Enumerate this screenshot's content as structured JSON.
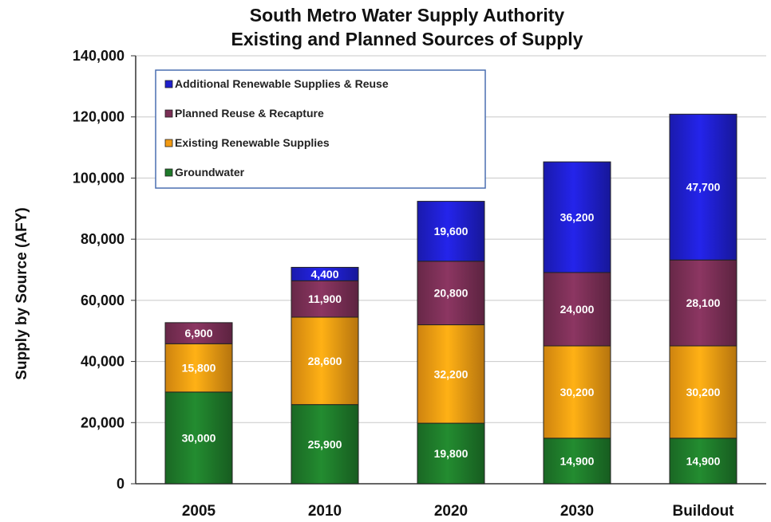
{
  "chart_data": {
    "type": "bar",
    "stacked": true,
    "title": "South Metro Water Supply Authority",
    "subtitle": "Existing and Planned Sources of Supply",
    "xlabel": "",
    "ylabel": "Supply by Source (AFY)",
    "ylim": [
      0,
      140000
    ],
    "yticks": [
      0,
      20000,
      40000,
      60000,
      80000,
      100000,
      120000,
      140000
    ],
    "ytick_labels": [
      "0",
      "20,000",
      "40,000",
      "60,000",
      "80,000",
      "100,000",
      "120,000",
      "140,000"
    ],
    "grid": true,
    "legend_position": "top-left",
    "categories": [
      "2005",
      "2010",
      "2020",
      "2030",
      "Buildout"
    ],
    "series": [
      {
        "name": "Groundwater",
        "color": "#1e7a2a",
        "values": [
          30000,
          25900,
          19800,
          14900,
          14900
        ],
        "labels": [
          "30,000",
          "25,900",
          "19,800",
          "14,900",
          "14,900"
        ]
      },
      {
        "name": "Existing Renewable Supplies",
        "color": "#f29a12",
        "values": [
          15800,
          28600,
          32200,
          30200,
          30200
        ],
        "labels": [
          "15,800",
          "28,600",
          "32,200",
          "30,200",
          "30,200"
        ]
      },
      {
        "name": "Planned Reuse & Recapture",
        "color": "#7a2f55",
        "values": [
          6900,
          11900,
          20800,
          24000,
          28100
        ],
        "labels": [
          "6,900",
          "11,900",
          "20,800",
          "24,000",
          "28,100"
        ]
      },
      {
        "name": "Additional Renewable Supplies & Reuse",
        "color": "#1f1fcc",
        "values": [
          0,
          4400,
          19600,
          36200,
          47700
        ],
        "labels": [
          "",
          "4,400",
          "19,600",
          "36,200",
          "47,700"
        ]
      }
    ]
  }
}
